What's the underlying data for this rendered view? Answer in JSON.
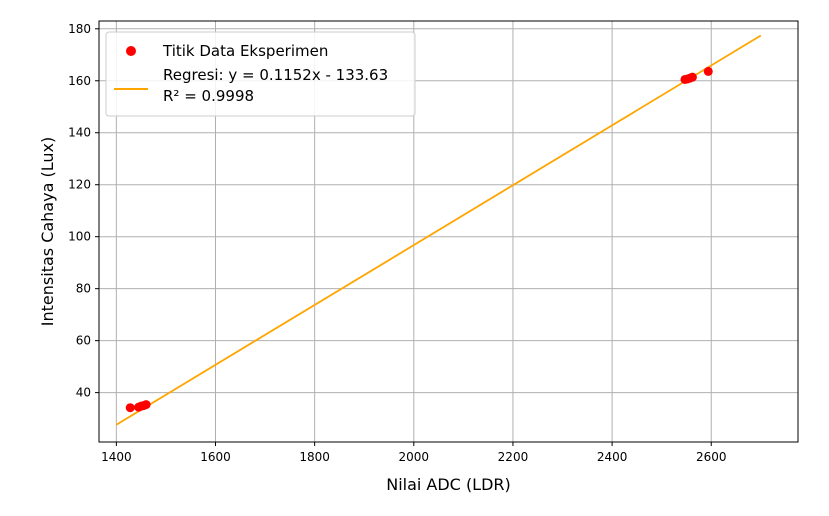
{
  "chart_data": {
    "type": "scatter",
    "xlabel": "Nilai ADC (LDR)",
    "ylabel": "Intensitas Cahaya (Lux)",
    "xlim": [
      1365,
      2775
    ],
    "ylim": [
      21,
      183
    ],
    "xticks": [
      1400,
      1600,
      1800,
      2000,
      2200,
      2400,
      2600
    ],
    "yticks": [
      40,
      60,
      80,
      100,
      120,
      140,
      160,
      180
    ],
    "grid": true,
    "legend_position": "upper-left",
    "series": [
      {
        "name": "Titik Data Eksperimen",
        "kind": "scatter",
        "color": "#ff0000",
        "points": [
          {
            "x": 1428,
            "y": 34.2
          },
          {
            "x": 1445,
            "y": 34.4
          },
          {
            "x": 1450,
            "y": 34.8
          },
          {
            "x": 1455,
            "y": 35.0
          },
          {
            "x": 1460,
            "y": 35.4
          },
          {
            "x": 2547,
            "y": 160.5
          },
          {
            "x": 2552,
            "y": 160.7
          },
          {
            "x": 2557,
            "y": 161.0
          },
          {
            "x": 2562,
            "y": 161.4
          },
          {
            "x": 2594,
            "y": 163.6
          }
        ]
      },
      {
        "name": "Regresi: y = 0.1152x - 133.63",
        "name_line2": "R² = 0.9998",
        "kind": "line",
        "color": "#ffa500",
        "slope": 0.1152,
        "intercept": -133.63,
        "x_range": [
          1400,
          2700
        ]
      }
    ]
  }
}
